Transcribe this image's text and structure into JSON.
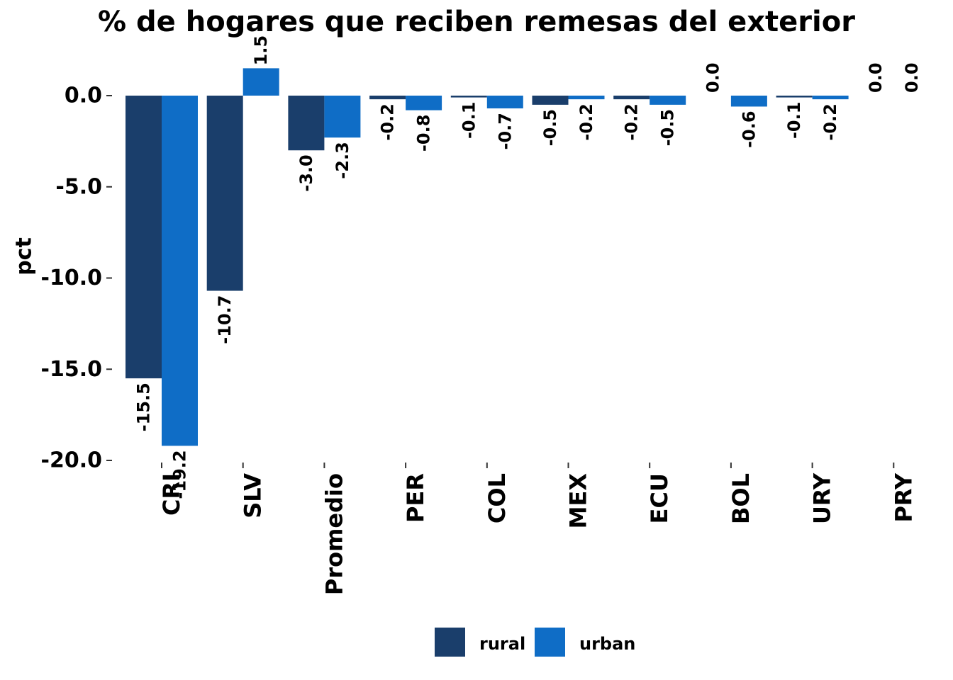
{
  "chart_data": {
    "type": "bar",
    "title": "% de hogares que reciben remesas del exterior",
    "xlabel": "",
    "ylabel": "pct",
    "categories": [
      "CRI",
      "SLV",
      "Promedio",
      "PER",
      "COL",
      "MEX",
      "ECU",
      "BOL",
      "URY",
      "PRY"
    ],
    "series": [
      {
        "name": "rural",
        "color": "#1a3e6b",
        "values": [
          -15.5,
          -10.7,
          -3.0,
          -0.2,
          -0.1,
          -0.5,
          -0.2,
          0.0,
          -0.1,
          0.0
        ]
      },
      {
        "name": "urban",
        "color": "#0f6dc6",
        "values": [
          -19.2,
          1.5,
          -2.3,
          -0.8,
          -0.7,
          -0.2,
          -0.5,
          -0.6,
          -0.2,
          0.0
        ]
      }
    ],
    "data_labels": [
      [
        "-15.5",
        "-10.7",
        "-3.0",
        "-0.2",
        "-0.1",
        "-0.5",
        "-0.2",
        "0.0",
        "-0.1",
        "0.0"
      ],
      [
        "-19.2",
        "1.5",
        "-2.3",
        "-0.8",
        "-0.7",
        "-0.2",
        "-0.5",
        "-0.6",
        "-0.2",
        "0.0"
      ]
    ],
    "yticks": [
      "0.0",
      "-5.0",
      "-10.0",
      "-15.0",
      "-20.0"
    ],
    "ylim": [
      -20,
      1.5
    ],
    "grid": false,
    "legend_position": "bottom"
  }
}
